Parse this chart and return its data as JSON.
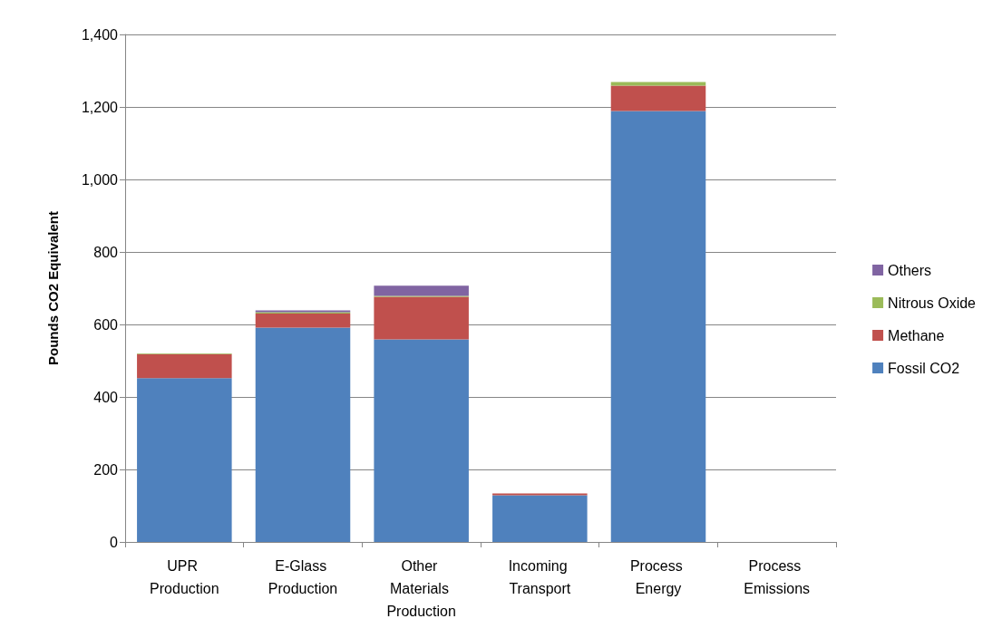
{
  "chart_data": {
    "type": "bar",
    "stacked": true,
    "ylabel": "Pounds CO2 Equivalent",
    "categories": [
      "UPR Production",
      "E-Glass Production",
      "Other Materials Production",
      "Incoming Transport",
      "Process Energy",
      "Process Emissions"
    ],
    "series": [
      {
        "name": "Fossil CO2",
        "color": "#4f81bd",
        "values": [
          452,
          591,
          559,
          129,
          1189,
          0
        ]
      },
      {
        "name": "Methane",
        "color": "#c0504d",
        "values": [
          66,
          39,
          117,
          5,
          70,
          0
        ]
      },
      {
        "name": "Nitrous Oxide",
        "color": "#9bbb59",
        "values": [
          2,
          4,
          3,
          null,
          10,
          0
        ]
      },
      {
        "name": "Others",
        "color": "#8064a2",
        "values": [
          0,
          5,
          28,
          0,
          0,
          0
        ]
      }
    ],
    "ylim": [
      0,
      1400
    ],
    "yticks": [
      0,
      200,
      400,
      600,
      800,
      {
        "value": 1000,
        "label": "1,000"
      },
      {
        "value": 1200,
        "label": "1,200"
      },
      {
        "value": 1400,
        "label": "1,400"
      }
    ],
    "grid": "y",
    "legend": "right"
  }
}
